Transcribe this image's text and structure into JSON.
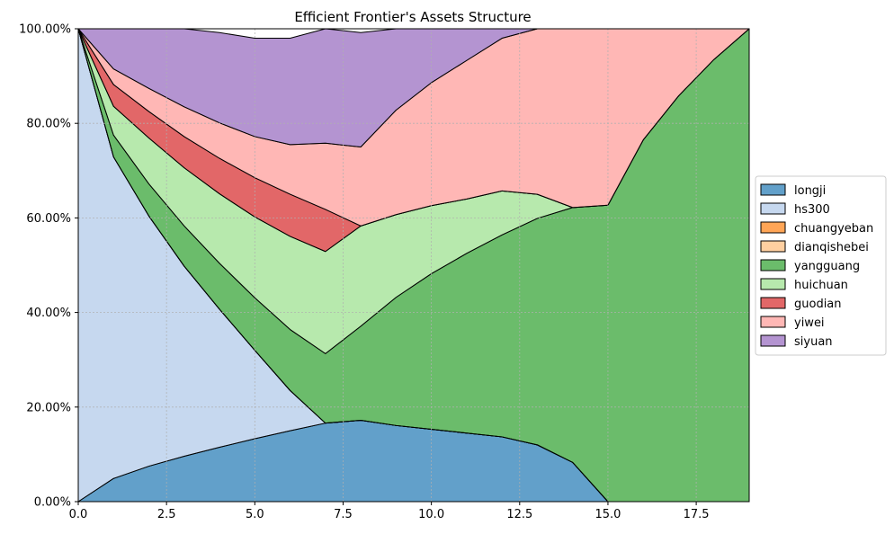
{
  "chart_data": {
    "type": "area",
    "title": "Efficient Frontier's Assets Structure",
    "xlabel": "",
    "ylabel": "",
    "xlim": [
      0,
      19
    ],
    "ylim": [
      0,
      100
    ],
    "x": [
      0,
      1,
      2,
      3,
      4,
      5,
      6,
      7,
      8,
      9,
      10,
      11,
      12,
      13,
      14,
      15,
      16,
      17,
      18,
      19
    ],
    "xticks": [
      0,
      2.5,
      5,
      7.5,
      10,
      12.5,
      15,
      17.5
    ],
    "xtick_labels": [
      "0.0",
      "2.5",
      "5.0",
      "7.5",
      "10.0",
      "12.5",
      "15.0",
      "17.5"
    ],
    "yticks": [
      0,
      20,
      40,
      60,
      80,
      100
    ],
    "ytick_labels": [
      "0.00%",
      "20.00%",
      "40.00%",
      "60.00%",
      "80.00%",
      "100.00%"
    ],
    "grid": true,
    "legend_position": "center-right-outside",
    "series": [
      {
        "name": "longji",
        "color": "#1f77b4",
        "values": [
          0,
          4.9,
          7.5,
          9.6,
          11.5,
          13.3,
          15,
          16.6,
          17.2,
          16.1,
          15.3,
          14.5,
          13.7,
          12,
          8.3,
          0,
          0,
          0,
          0,
          0
        ]
      },
      {
        "name": "hs300",
        "color": "#aec7e8",
        "values": [
          100,
          68,
          52.9,
          40.2,
          29.2,
          18.7,
          8.5,
          0,
          0,
          0,
          0,
          0,
          0,
          0,
          0,
          0,
          0,
          0,
          0,
          0
        ]
      },
      {
        "name": "chuangyeban",
        "color": "#ff7f0e",
        "values": [
          0,
          0,
          0,
          0,
          0,
          0,
          0,
          0,
          0,
          0,
          0,
          0,
          0,
          0,
          0,
          0,
          0,
          0,
          0,
          0
        ]
      },
      {
        "name": "dianqishebei",
        "color": "#ffbb78",
        "values": [
          0,
          0,
          0,
          0,
          0,
          0,
          0,
          0,
          0,
          0,
          0,
          0,
          0,
          0,
          0,
          0,
          0,
          0,
          0,
          0
        ]
      },
      {
        "name": "yangguang",
        "color": "#2ca02c",
        "values": [
          0,
          4.6,
          6.8,
          8.5,
          9.7,
          11.1,
          12.9,
          14.7,
          19.9,
          27.1,
          32.9,
          38,
          42.7,
          47.9,
          53.9,
          62.7,
          76.5,
          85.8,
          93.5,
          100
        ]
      },
      {
        "name": "huichuan",
        "color": "#98df8a",
        "values": [
          0,
          6.1,
          9.7,
          12.3,
          14.7,
          17.1,
          19.7,
          21.6,
          21.2,
          17.5,
          14.4,
          11.5,
          9.3,
          5.1,
          0,
          0,
          0,
          0,
          0,
          0
        ]
      },
      {
        "name": "guodian",
        "color": "#d62728",
        "values": [
          0,
          4.6,
          5.6,
          6.6,
          7.5,
          8.3,
          8.9,
          8.9,
          0,
          0,
          0,
          0,
          0,
          0,
          0,
          0,
          0,
          0,
          0,
          0
        ]
      },
      {
        "name": "yiwei",
        "color": "#ff9896",
        "values": [
          0,
          3.3,
          4.9,
          6.3,
          7.5,
          8.7,
          10.5,
          14,
          16.7,
          22.1,
          26,
          29.3,
          32.3,
          35,
          37.8,
          37.3,
          23.5,
          14.2,
          6.5,
          0
        ]
      },
      {
        "name": "siyuan",
        "color": "#9467bd",
        "values": [
          0,
          8.5,
          12.6,
          16.5,
          19.1,
          20.8,
          22.5,
          24.2,
          24.2,
          17.2,
          11.4,
          6.7,
          2,
          0,
          0,
          0,
          0,
          0,
          0,
          0
        ]
      }
    ]
  }
}
